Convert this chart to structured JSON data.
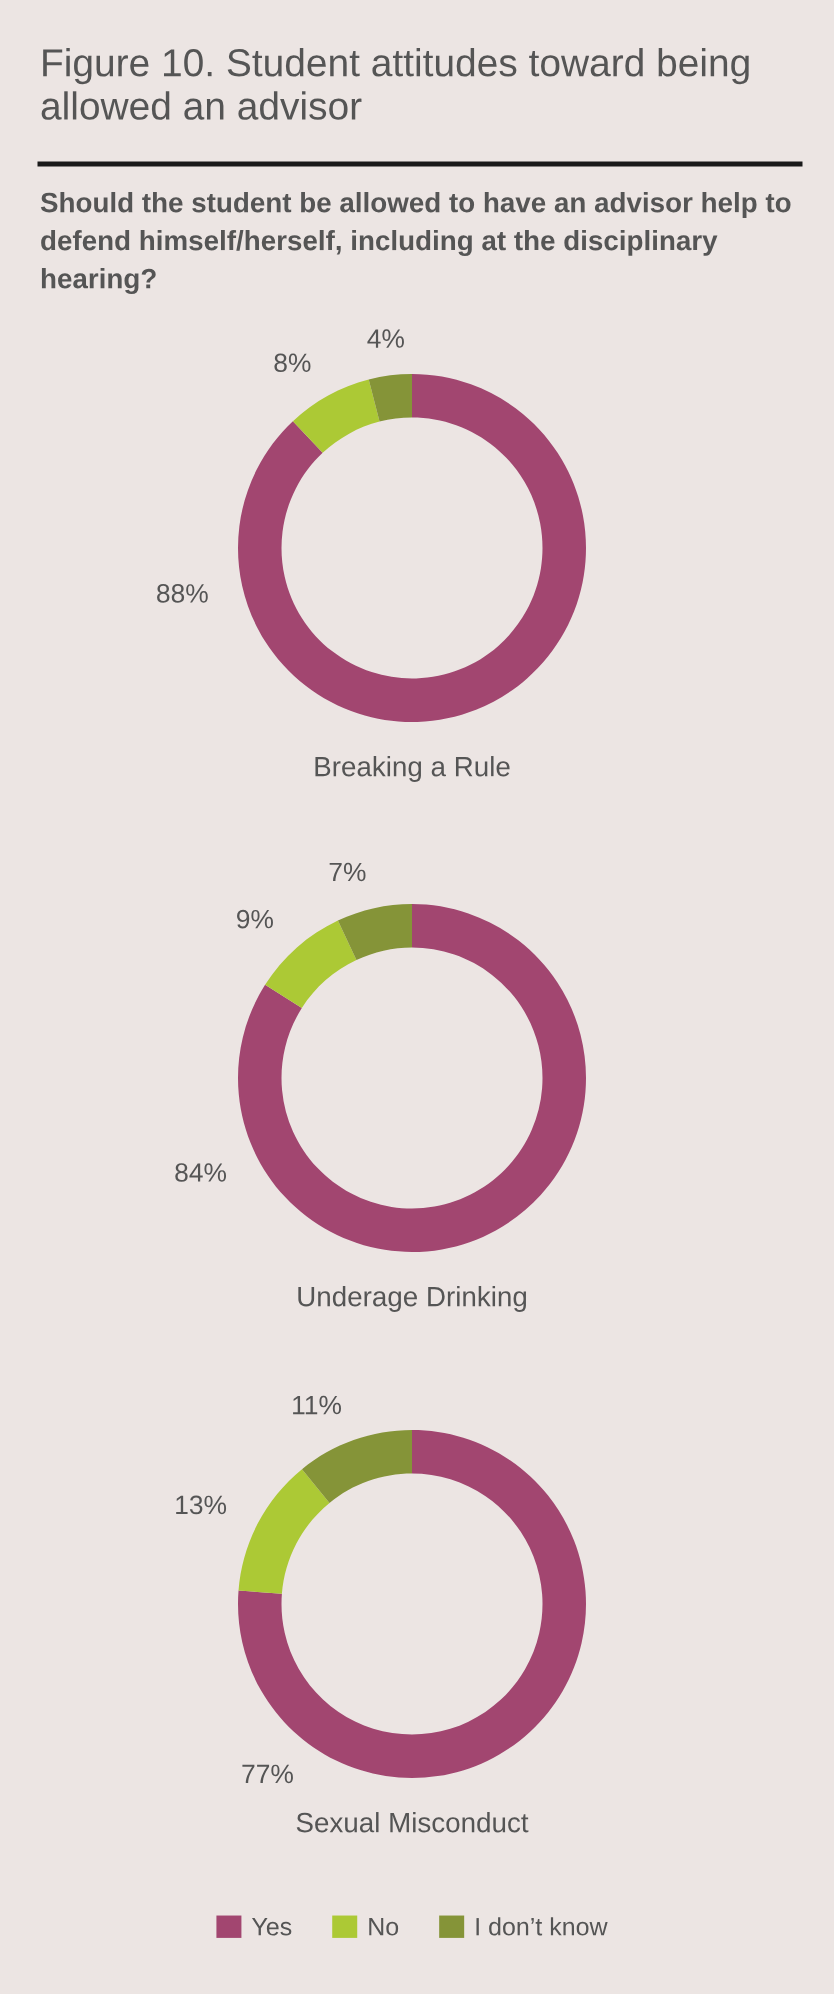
{
  "chart_data": [
    {
      "type": "donut",
      "title": "Figure 10. Student attitudes toward being allowed an advisor",
      "subtitle": "Should the student be allowed to have an advisor help to defend himself/herself, including at the disciplinary hearing?",
      "xlabel": "Breaking a Rule",
      "categories": [
        null,
        null,
        null
      ],
      "values": [
        88,
        8,
        4
      ],
      "colors": [
        "#a24670",
        "#acc935",
        "#859438"
      ],
      "value_labels": [
        "88%",
        "8%",
        "4%"
      ]
    },
    {
      "type": "donut",
      "xlabel": "Underage Drinking",
      "categories": [
        null,
        null,
        null
      ],
      "values": [
        84,
        9,
        7
      ],
      "colors": [
        "#a24670",
        "#acc935",
        "#859438"
      ],
      "value_labels": [
        "84%",
        "9%",
        "7%"
      ]
    },
    {
      "type": "donut",
      "xlabel": "Sexual Misconduct",
      "categories": [
        "Yes",
        "No",
        "I don’t know"
      ],
      "values": [
        77,
        13,
        11
      ],
      "colors": [
        "#a24670",
        "#acc935",
        "#859438"
      ],
      "value_labels": [
        "77%",
        "13%",
        "11%"
      ],
      "legend": "bottom"
    }
  ]
}
